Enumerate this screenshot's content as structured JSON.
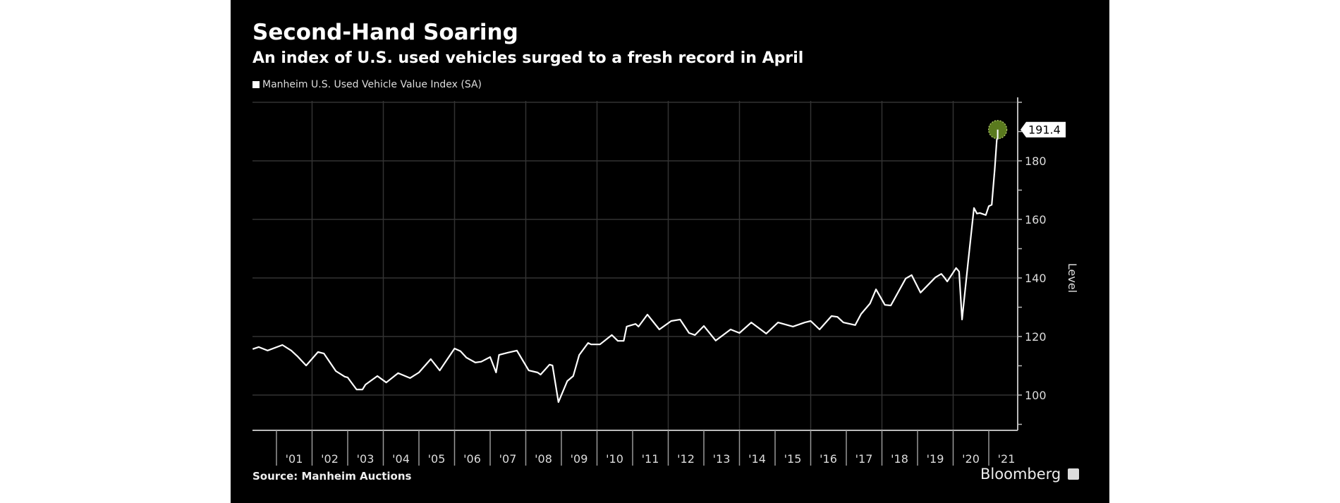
{
  "title": "Second-Hand Soaring",
  "subtitle": "An index of U.S. used vehicles surged to a fresh record in April",
  "source": "Source: Manheim Auctions",
  "brand": "Bloomberg",
  "colors": {
    "background": "#000000",
    "line": "#ffffff",
    "grid": "#333333",
    "highlight": "#5a7a1e"
  },
  "chart_data": {
    "type": "line",
    "title": "Second-Hand Soaring",
    "subtitle": "An index of U.S. used vehicles surged to a fresh record in April",
    "ylabel": "Level",
    "xlabel": "",
    "ylim": [
      88,
      201
    ],
    "y_axis_side": "right",
    "yticks": [
      100,
      120,
      140,
      160,
      180
    ],
    "xticks": [
      "'01",
      "'02",
      "'03",
      "'04",
      "'05",
      "'06",
      "'07",
      "'08",
      "'09",
      "'10",
      "'11",
      "'12",
      "'13",
      "'14",
      "'15",
      "'16",
      "'17",
      "'18",
      "'19",
      "'20",
      "'21"
    ],
    "grid": true,
    "legend": "top-left",
    "annotation": {
      "label": "191.4",
      "x": "2021-04",
      "y": 191.4
    },
    "series": [
      {
        "name": "Manheim U.S. Used Vehicle Value Index (SA)",
        "points": [
          [
            "2000-05",
            115.7
          ],
          [
            "2000-07",
            116.4
          ],
          [
            "2000-10",
            115.2
          ],
          [
            "2001-03",
            117.1
          ],
          [
            "2001-06",
            115.2
          ],
          [
            "2001-08",
            113.3
          ],
          [
            "2001-11",
            110.1
          ],
          [
            "2002-03",
            114.7
          ],
          [
            "2002-05",
            114.2
          ],
          [
            "2002-09",
            108.2
          ],
          [
            "2002-12",
            106.3
          ],
          [
            "2003-01",
            106.0
          ],
          [
            "2003-04",
            101.9
          ],
          [
            "2003-06",
            101.9
          ],
          [
            "2003-07",
            103.6
          ],
          [
            "2003-11",
            106.5
          ],
          [
            "2004-02",
            104.3
          ],
          [
            "2004-06",
            107.5
          ],
          [
            "2004-10",
            105.8
          ],
          [
            "2005-01",
            107.7
          ],
          [
            "2005-05",
            112.3
          ],
          [
            "2005-08",
            108.4
          ],
          [
            "2006-01",
            115.9
          ],
          [
            "2006-03",
            115.0
          ],
          [
            "2006-05",
            112.8
          ],
          [
            "2006-08",
            111.1
          ],
          [
            "2006-10",
            111.4
          ],
          [
            "2007-01",
            113.0
          ],
          [
            "2007-03",
            107.7
          ],
          [
            "2007-04",
            113.7
          ],
          [
            "2007-07",
            114.5
          ],
          [
            "2007-10",
            115.2
          ],
          [
            "2008-02",
            108.4
          ],
          [
            "2008-05",
            107.7
          ],
          [
            "2008-06",
            107.0
          ],
          [
            "2008-09",
            110.4
          ],
          [
            "2008-10",
            110.1
          ],
          [
            "2008-12",
            97.6
          ],
          [
            "2009-03",
            104.8
          ],
          [
            "2009-05",
            106.5
          ],
          [
            "2009-07",
            113.7
          ],
          [
            "2009-10",
            117.8
          ],
          [
            "2009-11",
            117.3
          ],
          [
            "2010-02",
            117.3
          ],
          [
            "2010-06",
            120.5
          ],
          [
            "2010-08",
            118.5
          ],
          [
            "2010-10",
            118.5
          ],
          [
            "2010-11",
            123.4
          ],
          [
            "2011-02",
            124.3
          ],
          [
            "2011-03",
            123.4
          ],
          [
            "2011-06",
            127.5
          ],
          [
            "2011-10",
            122.4
          ],
          [
            "2012-02",
            125.3
          ],
          [
            "2012-05",
            125.8
          ],
          [
            "2012-08",
            121.2
          ],
          [
            "2012-10",
            120.5
          ],
          [
            "2013-01",
            123.6
          ],
          [
            "2013-05",
            118.6
          ],
          [
            "2013-10",
            122.4
          ],
          [
            "2014-01",
            121.2
          ],
          [
            "2014-05",
            124.8
          ],
          [
            "2014-10",
            121.0
          ],
          [
            "2015-02",
            124.8
          ],
          [
            "2015-07",
            123.4
          ],
          [
            "2015-11",
            124.8
          ],
          [
            "2016-01",
            125.3
          ],
          [
            "2016-04",
            122.4
          ],
          [
            "2016-08",
            127.0
          ],
          [
            "2016-10",
            126.7
          ],
          [
            "2016-12",
            124.8
          ],
          [
            "2017-04",
            123.9
          ],
          [
            "2017-06",
            127.7
          ],
          [
            "2017-09",
            131.3
          ],
          [
            "2017-11",
            136.1
          ],
          [
            "2018-02",
            130.8
          ],
          [
            "2018-04",
            130.6
          ],
          [
            "2018-09",
            139.8
          ],
          [
            "2018-11",
            141.0
          ],
          [
            "2019-02",
            135.0
          ],
          [
            "2019-07",
            140.2
          ],
          [
            "2019-09",
            141.4
          ],
          [
            "2019-10",
            140.2
          ],
          [
            "2019-11",
            138.8
          ],
          [
            "2020-02",
            143.4
          ],
          [
            "2020-03",
            142.2
          ],
          [
            "2020-04",
            125.8
          ],
          [
            "2020-06",
            145.0
          ],
          [
            "2020-08",
            163.9
          ],
          [
            "2020-09",
            162.0
          ],
          [
            "2020-10",
            162.2
          ],
          [
            "2020-12",
            161.5
          ],
          [
            "2021-01",
            164.5
          ],
          [
            "2021-02",
            165.0
          ],
          [
            "2021-03",
            177.0
          ],
          [
            "2021-04",
            191.4
          ]
        ]
      }
    ]
  }
}
